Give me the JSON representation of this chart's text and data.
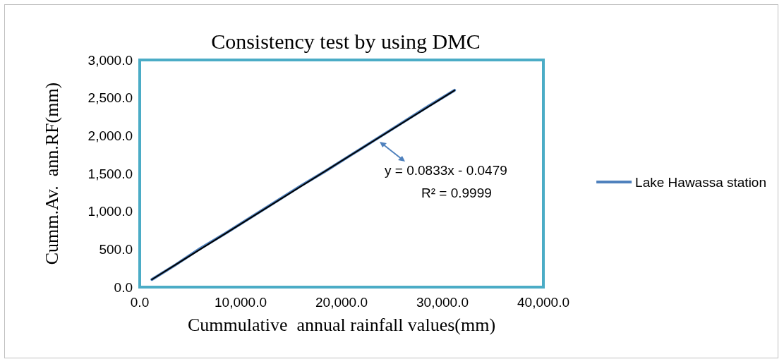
{
  "chart_data": {
    "type": "line",
    "title": "Consistency test by using DMC",
    "xlabel": "Cummulative  annual rainfall values(mm)",
    "ylabel": "Cumm.Av.  ann.RF(mm)",
    "xlim": [
      0,
      40000
    ],
    "xticks": [
      {
        "value": 0,
        "label": "0.0"
      },
      {
        "value": 10000,
        "label": "10,000.0"
      },
      {
        "value": 20000,
        "label": "20,000.0"
      },
      {
        "value": 30000,
        "label": "30,000.0"
      },
      {
        "value": 40000,
        "label": "40,000.0"
      }
    ],
    "ylim": [
      0,
      3000
    ],
    "yticks": [
      {
        "value": 0,
        "label": "0.0"
      },
      {
        "value": 500,
        "label": "500.0"
      },
      {
        "value": 1000,
        "label": "1,000.0"
      },
      {
        "value": 1500,
        "label": "1,500.0"
      },
      {
        "value": 2000,
        "label": "2,000.0"
      },
      {
        "value": 2500,
        "label": "2,500.0"
      },
      {
        "value": 3000,
        "label": "3,000.0"
      }
    ],
    "series": [
      {
        "name": "Lake Hawassa station",
        "color": "#4f81bd",
        "x": [
          1200,
          3500,
          6000,
          8500,
          11000,
          13500,
          16000,
          18500,
          21000,
          23500,
          26000,
          28500,
          31200
        ],
        "values": [
          100,
          290,
          510,
          710,
          920,
          1130,
          1340,
          1540,
          1750,
          1960,
          2170,
          2380,
          2600
        ]
      },
      {
        "type": "line",
        "color": "#000000",
        "x": [
          1200,
          31200
        ],
        "values": [
          100,
          2599
        ]
      }
    ],
    "annotations": [
      "y = 0.0833x - 0.0479",
      "R² = 0.9999"
    ],
    "legend": "right",
    "grid": false,
    "marker": "none",
    "line_style": "solid"
  }
}
